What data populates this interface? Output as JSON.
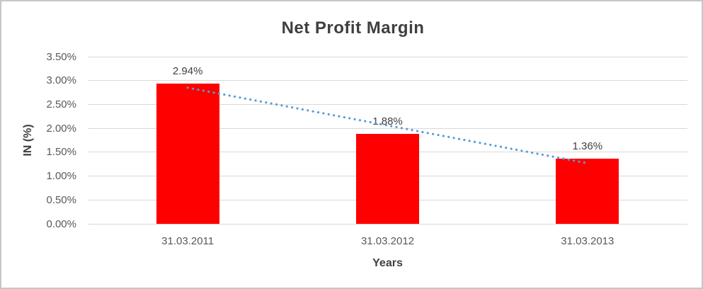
{
  "chart_data": {
    "type": "bar",
    "title": "Net Profit Margin",
    "xlabel": "Years",
    "ylabel": "IN (%)",
    "categories": [
      "31.03.2011",
      "31.03.2012",
      "31.03.2013"
    ],
    "values": [
      2.94,
      1.88,
      1.36
    ],
    "data_labels": [
      "2.94%",
      "1.88%",
      "1.36%"
    ],
    "ylim": [
      0,
      3.5
    ],
    "ytick_step": 0.5,
    "yticks_top_to_bottom": [
      "3.50%",
      "3.00%",
      "2.50%",
      "2.00%",
      "1.50%",
      "1.00%",
      "0.50%",
      "0.00%"
    ],
    "grid": true,
    "legend": "none",
    "colors": {
      "bar": "#ff0000",
      "trendline": "#5b9bd5",
      "gridline": "#d9d9d9",
      "title_text": "#3f3f3f",
      "tick_text": "#595959",
      "axis_title_text": "#404040",
      "frame_border": "#c7c7c7"
    },
    "trendline": {
      "style": "dotted",
      "color": "#5b9bd5",
      "start_value": 2.85,
      "end_value": 1.27
    }
  }
}
